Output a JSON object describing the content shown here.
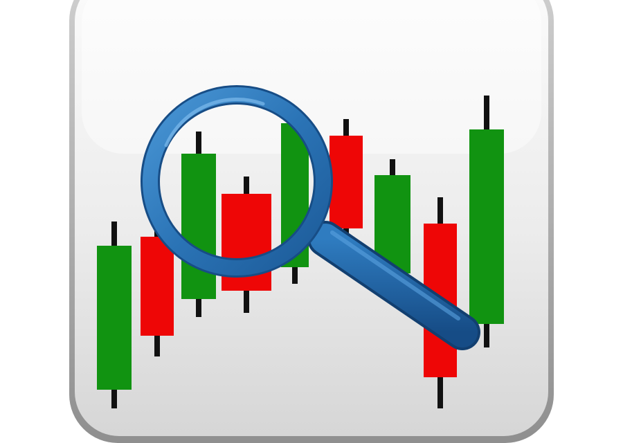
{
  "colors": {
    "bullish": "#119311",
    "bearish": "#ee0606",
    "wick": "#111111",
    "tile_light": "#f3f3f3",
    "tile_shadow": "#9b9b9b",
    "magnifier_ring": "#2b74b6",
    "magnifier_handle": "#1e5a9b"
  },
  "icon_name": "stock-chart-search-app-icon",
  "candles": [
    {
      "direction": "up"
    },
    {
      "direction": "down"
    },
    {
      "direction": "up"
    },
    {
      "direction": "down"
    },
    {
      "direction": "up"
    },
    {
      "direction": "down"
    },
    {
      "direction": "up"
    },
    {
      "direction": "down"
    },
    {
      "direction": "up"
    }
  ]
}
